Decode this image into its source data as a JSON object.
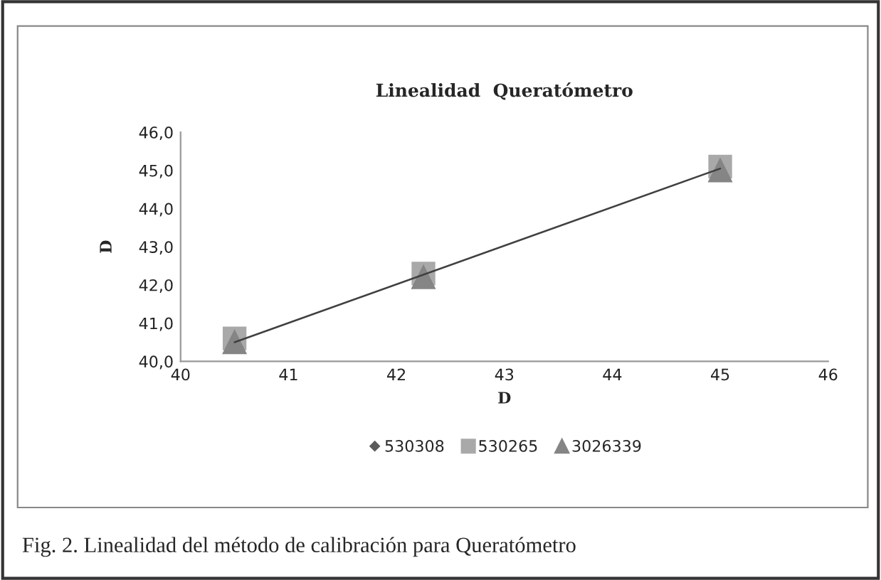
{
  "chart_data": {
    "type": "scatter",
    "title": "Linealidad  Queratómetro",
    "xlabel": "D",
    "ylabel": "D",
    "series": [
      {
        "name": "530308",
        "color": "#5a5a5a",
        "marker": "diamond"
      },
      {
        "name": "530265",
        "color": "#a9a9a9",
        "marker": "square",
        "x": [
          40.5,
          42.25,
          45.0
        ],
        "values": [
          40.6,
          42.3,
          45.1
        ]
      },
      {
        "name": "3026339",
        "color": "#858585",
        "marker": "triangle",
        "x": [
          40.5,
          42.25,
          45.0
        ],
        "values": [
          40.5,
          42.2,
          45.0
        ]
      },
      {
        "type": "line",
        "color": "#404040",
        "marker": "none",
        "x": [
          40.5,
          45.0
        ],
        "values": [
          40.5,
          45.05
        ]
      }
    ],
    "xlim": [
      40,
      46
    ],
    "xticks": [
      40,
      41,
      42,
      43,
      44,
      45,
      46
    ],
    "ylim": [
      40,
      46
    ],
    "yticks": [
      {
        "value": 40,
        "label": "40,0"
      },
      {
        "value": 41,
        "label": "41,0"
      },
      {
        "value": 42,
        "label": "42,0"
      },
      {
        "value": 43,
        "label": "43,0"
      },
      {
        "value": 44,
        "label": "44,0"
      },
      {
        "value": 45,
        "label": "45,0"
      },
      {
        "value": 46,
        "label": "46,0"
      }
    ],
    "grid": false,
    "legend": "bottom",
    "annotations": [
      "Fig. 2. Linealidad del método de calibración para Queratómetro"
    ]
  }
}
